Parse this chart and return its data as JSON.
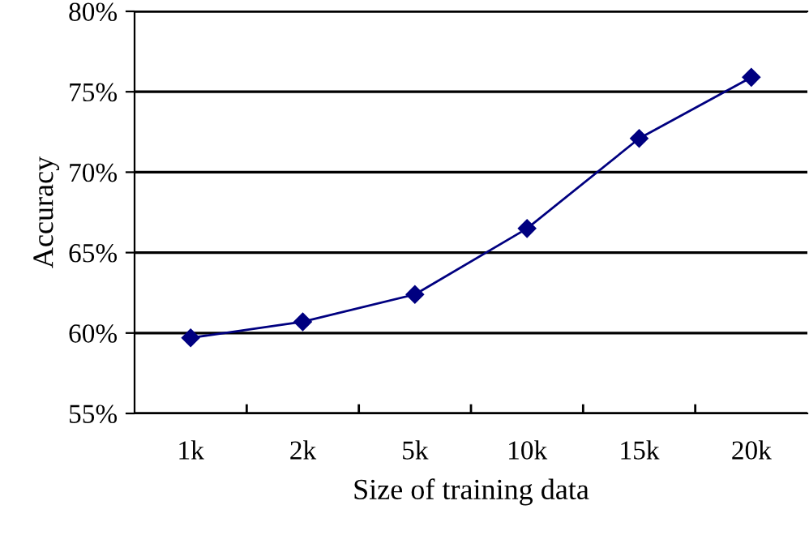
{
  "chart_data": {
    "type": "line",
    "xlabel": "Size of training data",
    "ylabel": "Accuracy",
    "categories": [
      "1k",
      "2k",
      "5k",
      "10k",
      "15k",
      "20k"
    ],
    "series": [
      {
        "color": "#000080",
        "values": [
          59.7,
          60.7,
          62.4,
          66.5,
          72.1,
          75.9
        ]
      }
    ],
    "ylim": [
      55,
      80
    ],
    "yticks": [
      {
        "value": 55,
        "label": "55%"
      },
      {
        "value": 60,
        "label": "60%"
      },
      {
        "value": 65,
        "label": "65%"
      },
      {
        "value": 70,
        "label": "70%"
      },
      {
        "value": 75,
        "label": "75%"
      },
      {
        "value": 80,
        "label": "80%"
      }
    ],
    "grid": "y",
    "marker": "diamond",
    "line_style": "solid",
    "legend": false
  }
}
